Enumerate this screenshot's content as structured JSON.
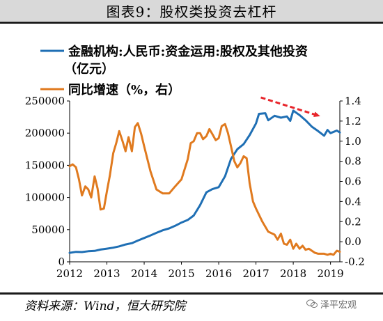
{
  "title": "图表9：股权类投资去杠杆",
  "source": "资料来源：Wind，恒大研究院",
  "watermark": "泽平宏观",
  "colors": {
    "series1": "#1f6fb4",
    "series2": "#e07a1f",
    "arrow": "#e8252b",
    "title_bg": "#d9d9d9"
  },
  "chart_data": {
    "type": "line",
    "x_ticks": [
      "2012",
      "2013",
      "2014",
      "2015",
      "2016",
      "2017",
      "2018",
      "2019"
    ],
    "x_range": [
      2012.0,
      2019.25
    ],
    "y_left": {
      "min": 0,
      "max": 250000,
      "ticks": [
        "0",
        "50000",
        "100000",
        "150000",
        "200000",
        "250000"
      ]
    },
    "y_right": {
      "min": -0.2,
      "max": 1.4,
      "ticks": [
        "-0.2",
        "0.0",
        "0.2",
        "0.4",
        "0.6",
        "0.8",
        "1.0",
        "1.2",
        "1.4"
      ]
    },
    "legend": {
      "position": "top",
      "entries": [
        "金融机构:人民币:资金运用:股权及其他投资（亿元）",
        "同比增速（%，右）"
      ]
    },
    "annotation": "red dashed arrow pointing downward-right near 2017-2018 peak",
    "series": [
      {
        "name": "金融机构:人民币:资金运用:股权及其他投资（亿元）",
        "axis": "left",
        "points": [
          [
            2012.0,
            14000
          ],
          [
            2012.17,
            15500
          ],
          [
            2012.33,
            15200
          ],
          [
            2012.5,
            16500
          ],
          [
            2012.67,
            17000
          ],
          [
            2012.83,
            19000
          ],
          [
            2013.0,
            20500
          ],
          [
            2013.17,
            22000
          ],
          [
            2013.33,
            24000
          ],
          [
            2013.5,
            27000
          ],
          [
            2013.67,
            29000
          ],
          [
            2013.83,
            33000
          ],
          [
            2014.0,
            37000
          ],
          [
            2014.17,
            41000
          ],
          [
            2014.33,
            45000
          ],
          [
            2014.5,
            49000
          ],
          [
            2014.67,
            52000
          ],
          [
            2014.83,
            56000
          ],
          [
            2015.0,
            61000
          ],
          [
            2015.17,
            65000
          ],
          [
            2015.33,
            72000
          ],
          [
            2015.5,
            88000
          ],
          [
            2015.67,
            108000
          ],
          [
            2015.83,
            113000
          ],
          [
            2016.0,
            116000
          ],
          [
            2016.17,
            133000
          ],
          [
            2016.33,
            160000
          ],
          [
            2016.5,
            175000
          ],
          [
            2016.67,
            183000
          ],
          [
            2016.83,
            197000
          ],
          [
            2017.0,
            215000
          ],
          [
            2017.08,
            230000
          ],
          [
            2017.25,
            231000
          ],
          [
            2017.33,
            220000
          ],
          [
            2017.5,
            227000
          ],
          [
            2017.67,
            224000
          ],
          [
            2017.83,
            226000
          ],
          [
            2017.92,
            219000
          ],
          [
            2018.0,
            235000
          ],
          [
            2018.17,
            228000
          ],
          [
            2018.33,
            220000
          ],
          [
            2018.5,
            210000
          ],
          [
            2018.67,
            203000
          ],
          [
            2018.83,
            196000
          ],
          [
            2018.92,
            205000
          ],
          [
            2019.0,
            200000
          ],
          [
            2019.17,
            204000
          ],
          [
            2019.25,
            201000
          ]
        ]
      },
      {
        "name": "同比增速（%，右）",
        "axis": "right",
        "points": [
          [
            2012.0,
            0.75
          ],
          [
            2012.08,
            0.77
          ],
          [
            2012.17,
            0.74
          ],
          [
            2012.25,
            0.62
          ],
          [
            2012.33,
            0.46
          ],
          [
            2012.42,
            0.55
          ],
          [
            2012.5,
            0.52
          ],
          [
            2012.58,
            0.44
          ],
          [
            2012.67,
            0.65
          ],
          [
            2012.75,
            0.53
          ],
          [
            2012.83,
            0.32
          ],
          [
            2012.92,
            0.33
          ],
          [
            2013.0,
            0.5
          ],
          [
            2013.08,
            0.66
          ],
          [
            2013.17,
            0.88
          ],
          [
            2013.25,
            0.98
          ],
          [
            2013.33,
            1.1
          ],
          [
            2013.42,
            1.0
          ],
          [
            2013.5,
            0.9
          ],
          [
            2013.58,
            1.04
          ],
          [
            2013.67,
            0.9
          ],
          [
            2013.75,
            1.14
          ],
          [
            2013.83,
            1.18
          ],
          [
            2013.92,
            1.07
          ],
          [
            2014.0,
            0.95
          ],
          [
            2014.17,
            0.7
          ],
          [
            2014.33,
            0.52
          ],
          [
            2014.5,
            0.48
          ],
          [
            2014.67,
            0.48
          ],
          [
            2014.83,
            0.55
          ],
          [
            2015.0,
            0.62
          ],
          [
            2015.17,
            0.82
          ],
          [
            2015.25,
            0.98
          ],
          [
            2015.33,
            1.0
          ],
          [
            2015.42,
            1.08
          ],
          [
            2015.5,
            1.08
          ],
          [
            2015.58,
            1.02
          ],
          [
            2015.67,
            1.05
          ],
          [
            2015.75,
            1.12
          ],
          [
            2015.83,
            1.07
          ],
          [
            2015.92,
            1.01
          ],
          [
            2016.0,
            1.03
          ],
          [
            2016.08,
            1.15
          ],
          [
            2016.17,
            1.17
          ],
          [
            2016.25,
            1.08
          ],
          [
            2016.33,
            0.95
          ],
          [
            2016.42,
            0.8
          ],
          [
            2016.5,
            0.74
          ],
          [
            2016.58,
            0.78
          ],
          [
            2016.67,
            0.85
          ],
          [
            2016.75,
            0.83
          ],
          [
            2016.83,
            0.58
          ],
          [
            2016.92,
            0.4
          ],
          [
            2017.0,
            0.33
          ],
          [
            2017.17,
            0.2
          ],
          [
            2017.33,
            0.1
          ],
          [
            2017.5,
            0.07
          ],
          [
            2017.58,
            0.02
          ],
          [
            2017.67,
            0.08
          ],
          [
            2017.75,
            -0.02
          ],
          [
            2017.83,
            -0.03
          ],
          [
            2017.92,
            0.02
          ],
          [
            2018.0,
            -0.07
          ],
          [
            2018.08,
            -0.02
          ],
          [
            2018.17,
            -0.07
          ],
          [
            2018.25,
            -0.04
          ],
          [
            2018.33,
            -0.08
          ],
          [
            2018.42,
            -0.07
          ],
          [
            2018.58,
            -0.11
          ],
          [
            2018.67,
            -0.12
          ],
          [
            2018.83,
            -0.12
          ],
          [
            2018.92,
            -0.13
          ],
          [
            2019.0,
            -0.12
          ],
          [
            2019.08,
            -0.13
          ],
          [
            2019.17,
            -0.09
          ],
          [
            2019.25,
            -0.1
          ]
        ]
      }
    ]
  }
}
